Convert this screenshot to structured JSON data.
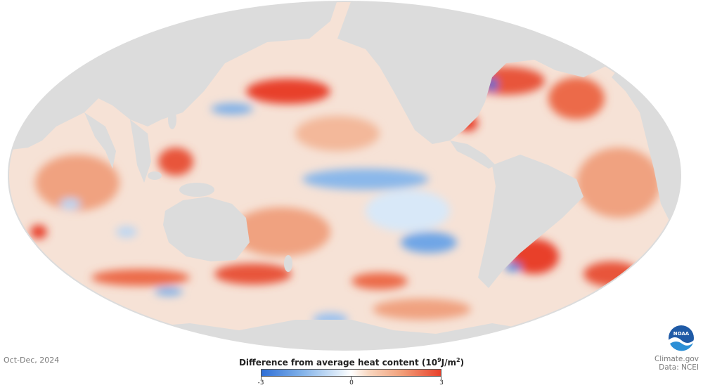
{
  "period": "Oct-Dec, 2024",
  "legend": {
    "title": "Difference from average heat content (10",
    "exp": "9",
    "unit_mid": "J/m",
    "unit_exp": "2",
    "title_end": ")",
    "ticks": [
      "-3",
      "0",
      "3"
    ],
    "colors": {
      "negative": "#2f6fd6",
      "neutral": "#ffffff",
      "positive": "#e8402a",
      "land": "#dcdcdc"
    }
  },
  "credits": {
    "line1": "Climate.gov",
    "line2": "Data: NCEI"
  },
  "logo": {
    "text": "NOAA"
  }
}
